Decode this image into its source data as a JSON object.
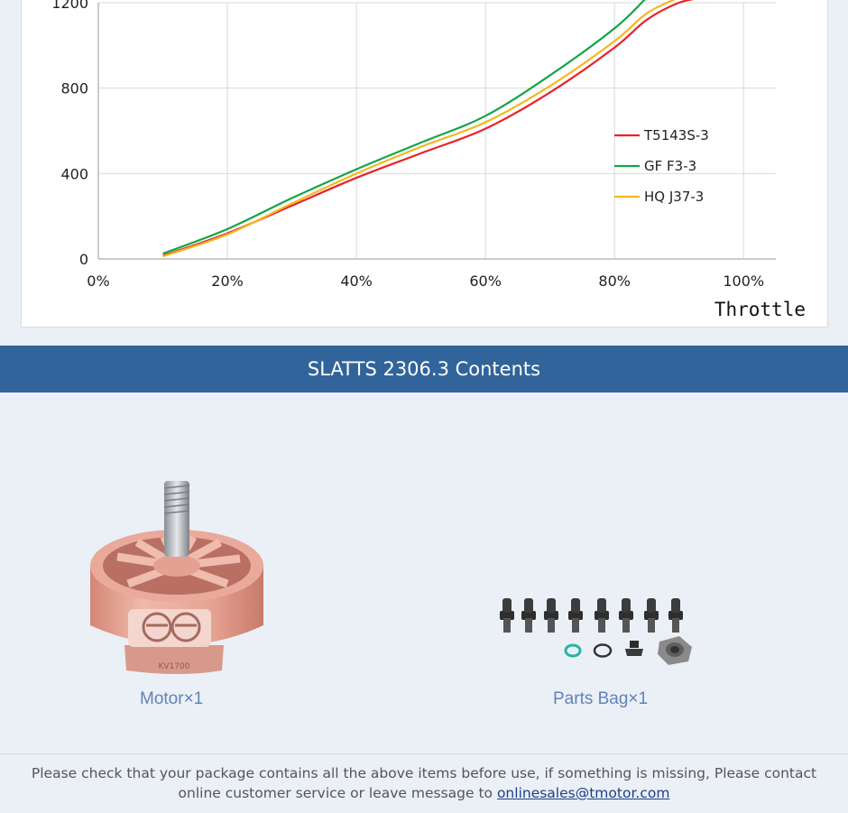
{
  "chart_data": {
    "type": "line",
    "xlabel": "Throttle",
    "y_ticks": [
      "0",
      "400",
      "800",
      "1200"
    ],
    "x_ticks": [
      "0%",
      "20%",
      "40%",
      "60%",
      "80%",
      "100%"
    ],
    "xlim": [
      0,
      105
    ],
    "ylim": [
      0,
      1200
    ],
    "grid": true,
    "legend_position": "right",
    "series": [
      {
        "name": "T5143S-3",
        "color": "#e8232a",
        "x": [
          10,
          20,
          30,
          40,
          50,
          60,
          70,
          80,
          85,
          90,
          94
        ],
        "y": [
          15,
          120,
          250,
          380,
          495,
          610,
          780,
          990,
          1120,
          1200,
          1225
        ]
      },
      {
        "name": "GF F3-3",
        "color": "#17a34a",
        "x": [
          10,
          20,
          30,
          40,
          50,
          60,
          70,
          80,
          85
        ],
        "y": [
          25,
          140,
          285,
          420,
          545,
          670,
          860,
          1080,
          1225
        ]
      },
      {
        "name": "HQ J37-3",
        "color": "#f3b81f",
        "x": [
          10,
          20,
          30,
          40,
          50,
          60,
          70,
          80,
          85,
          90
        ],
        "y": [
          12,
          115,
          260,
          400,
          525,
          640,
          810,
          1020,
          1150,
          1225
        ]
      }
    ]
  },
  "contents": {
    "title": "SLATTS 2306.3 Contents",
    "motor_label": "Motor×1",
    "parts_label": "Parts Bag×1",
    "motor_kv": "KV1700"
  },
  "footer": {
    "text": "Please check that your package contains all the above items before use, if something is missing, Please contact online customer service or leave message to ",
    "email": "onlinesales@tmotor.com"
  },
  "colors": {
    "band": "#31649a",
    "motor_body": "#e4a093",
    "label": "#5f84b8"
  }
}
